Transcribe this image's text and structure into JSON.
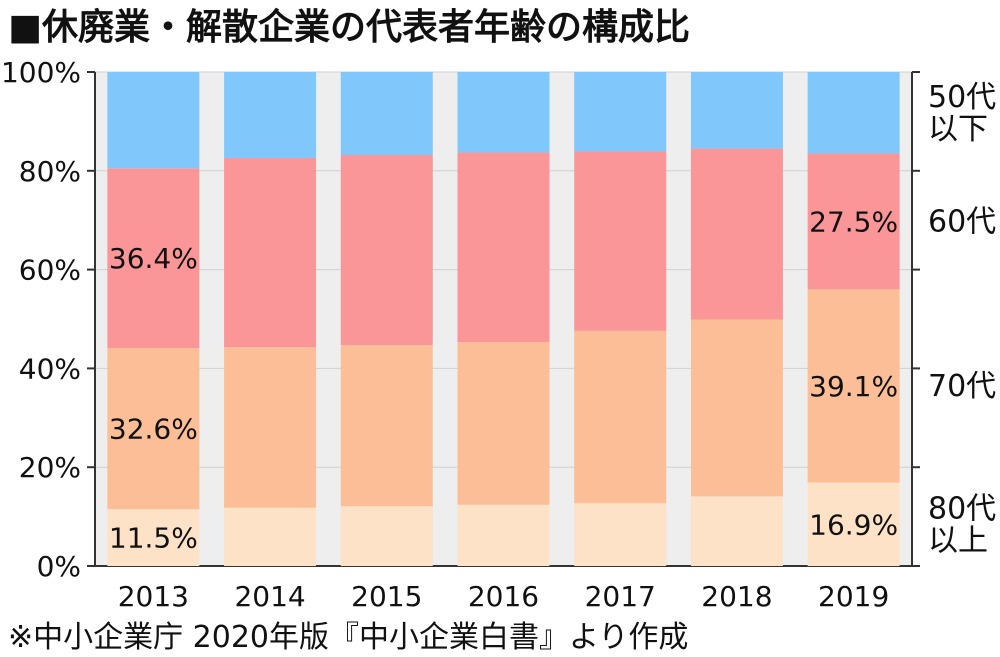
{
  "title": "■休廃業・解散企業の代表者年齢の構成比",
  "source": "※中小企業庁 2020年版『中小企業白書』より作成",
  "colors": {
    "u50": "#80C8FC",
    "s60": "#FB9698",
    "s70": "#FBBE97",
    "o80": "#FDE2C8",
    "gridline": "#d0d0d0",
    "axis": "#333333",
    "background": "#eeeeee"
  },
  "chart_data": {
    "type": "bar",
    "stacked": true,
    "categories": [
      "2013",
      "2014",
      "2015",
      "2016",
      "2017",
      "2018",
      "2019"
    ],
    "ylim": [
      0,
      100
    ],
    "yticks": [
      "0%",
      "20%",
      "40%",
      "60%",
      "80%",
      "100%"
    ],
    "xlabel": "",
    "ylabel": "",
    "series": [
      {
        "key": "o80",
        "name": "80代\n以上",
        "values": [
          11.5,
          11.8,
          12.1,
          12.4,
          12.7,
          14.1,
          16.9
        ]
      },
      {
        "key": "s70",
        "name": "70代",
        "values": [
          32.6,
          32.5,
          32.6,
          32.9,
          34.9,
          35.8,
          39.1
        ]
      },
      {
        "key": "s60",
        "name": "60代",
        "values": [
          36.4,
          38.3,
          38.5,
          38.4,
          36.3,
          34.6,
          27.5
        ]
      },
      {
        "key": "u50",
        "name": "50代\n以下",
        "values": [
          19.5,
          17.4,
          16.8,
          16.3,
          16.1,
          15.5,
          16.5
        ]
      }
    ],
    "data_labels": [
      {
        "series": "o80",
        "category": "2013",
        "text": "11.5%"
      },
      {
        "series": "s70",
        "category": "2013",
        "text": "32.6%"
      },
      {
        "series": "s60",
        "category": "2013",
        "text": "36.4%"
      },
      {
        "series": "o80",
        "category": "2019",
        "text": "16.9%"
      },
      {
        "series": "s70",
        "category": "2019",
        "text": "39.1%"
      },
      {
        "series": "s60",
        "category": "2019",
        "text": "27.5%"
      }
    ],
    "grid": true,
    "legend": "right (series labels beside the last bar)"
  }
}
